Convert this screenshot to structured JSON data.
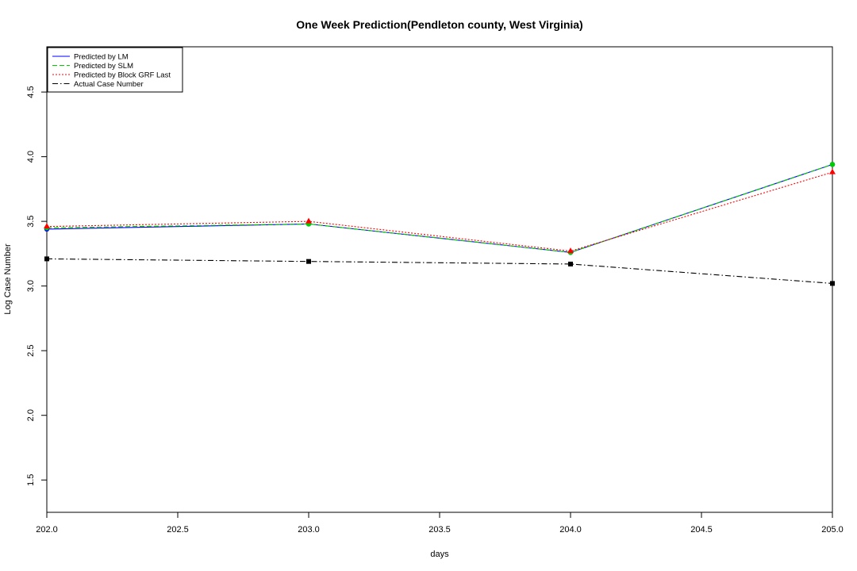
{
  "chart_data": {
    "type": "line",
    "title": "One Week Prediction(Pendleton county, West Virginia)",
    "xlabel": "days",
    "ylabel": "Log Case Number",
    "xlim": [
      202.0,
      205.0
    ],
    "ylim": [
      1.25,
      4.85
    ],
    "xticks": [
      202.0,
      202.5,
      203.0,
      203.5,
      204.0,
      204.5,
      205.0
    ],
    "xtick_labels": [
      "202.0",
      "202.5",
      "203.0",
      "203.5",
      "204.0",
      "204.5",
      "205.0"
    ],
    "yticks": [
      1.5,
      2.0,
      2.5,
      3.0,
      3.5,
      4.0,
      4.5
    ],
    "ytick_labels": [
      "1.5",
      "2.0",
      "2.5",
      "3.0",
      "3.5",
      "4.0",
      "4.5"
    ],
    "grid": false,
    "legend_position": "top-left",
    "x": [
      202,
      203,
      204,
      205
    ],
    "series": [
      {
        "name": "Predicted by LM",
        "values": [
          3.44,
          3.48,
          3.26,
          3.94
        ],
        "color": "#0000ff",
        "dash": "solid",
        "marker": "circle"
      },
      {
        "name": "Predicted by SLM",
        "values": [
          3.45,
          3.48,
          3.26,
          3.94
        ],
        "color": "#00cd00",
        "dash": "dashed",
        "marker": "circle"
      },
      {
        "name": "Predicted by Block GRF Last",
        "values": [
          3.46,
          3.5,
          3.27,
          3.88
        ],
        "color": "#ff0000",
        "dash": "dotted",
        "marker": "triangle"
      },
      {
        "name": "Actual Case Number",
        "values": [
          3.21,
          3.19,
          3.17,
          3.02
        ],
        "color": "#000000",
        "dash": "dashdot",
        "marker": "square"
      }
    ]
  }
}
